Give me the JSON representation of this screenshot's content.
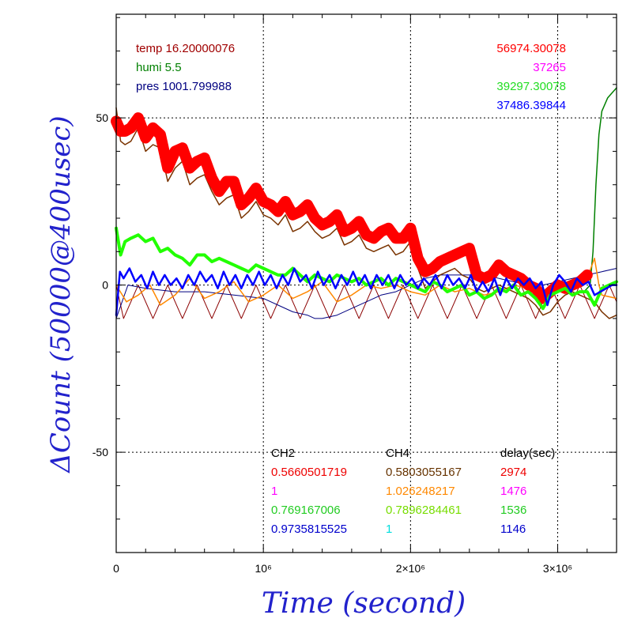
{
  "chart_data": {
    "type": "line",
    "xlabel": "Time (second)",
    "ylabel": "ΔCount (50000@400usec)",
    "xlim": [
      0,
      3400000
    ],
    "ylim": [
      -80,
      81
    ],
    "grid": true,
    "x_ticks": [
      {
        "value": 0,
        "label": "0"
      },
      {
        "value": 1000000,
        "label": "10⁶"
      },
      {
        "value": 2000000,
        "label": "2×10⁶"
      },
      {
        "value": 3000000,
        "label": "3×10⁶"
      }
    ],
    "y_ticks": [
      {
        "value": 50,
        "label": "50"
      },
      {
        "value": 0,
        "label": "0"
      },
      {
        "value": -50,
        "label": "-50"
      }
    ],
    "env_labels": [
      {
        "text": "temp 16.20000076",
        "color": "#a00000"
      },
      {
        "text": "humi 5.5",
        "color": "#008000"
      },
      {
        "text": "pres 1001.799988",
        "color": "#000080"
      }
    ],
    "ref_counts": [
      {
        "text": "56974.30078",
        "color": "#ff0000"
      },
      {
        "text": "37265",
        "color": "#ff00ff"
      },
      {
        "text": "39297.30078",
        "color": "#22dd22"
      },
      {
        "text": "37486.39844",
        "color": "#0000ff"
      }
    ],
    "ch_table": {
      "headers": [
        "CH2",
        "CH4",
        "delay(sec)"
      ],
      "ch2": [
        {
          "text": "0.5660501719",
          "color": "#ee0000"
        },
        {
          "text": "1",
          "color": "#ff00ff"
        },
        {
          "text": "0.769167006",
          "color": "#22cc22"
        },
        {
          "text": "0.9735815525",
          "color": "#0000cc"
        }
      ],
      "ch4": [
        {
          "text": "0.5803055167",
          "color": "#663300"
        },
        {
          "text": "1.026248217",
          "color": "#ff8800"
        },
        {
          "text": "0.7896284461",
          "color": "#77dd00"
        },
        {
          "text": "1",
          "color": "#00dddd"
        }
      ],
      "delay": [
        {
          "text": "2974",
          "color": "#ee0000"
        },
        {
          "text": "1476",
          "color": "#ff00ff"
        },
        {
          "text": "1536",
          "color": "#22cc22"
        },
        {
          "text": "1146",
          "color": "#0000cc"
        }
      ]
    },
    "series": [
      {
        "key": "temp",
        "color": "#8b0000",
        "width": 1,
        "x": [
          0,
          50000,
          150000,
          250000,
          350000,
          450000,
          550000,
          650000,
          750000,
          850000,
          950000,
          1050000,
          1150000,
          1250000,
          1350000,
          1450000,
          1550000,
          1650000,
          1750000,
          1850000,
          1950000,
          2050000,
          2150000,
          2250000,
          2350000,
          2450000,
          2550000,
          2650000,
          2750000,
          2850000,
          2950000,
          3050000,
          3150000,
          3250000,
          3350000,
          3400000
        ],
        "y": [
          0,
          -10,
          0,
          -10,
          0,
          -10,
          0,
          -10,
          0,
          -10,
          0,
          -10,
          0,
          -10,
          0,
          -10,
          0,
          -10,
          0,
          -10,
          0,
          -10,
          0,
          -10,
          0,
          -10,
          0,
          -10,
          0,
          -10,
          0,
          -10,
          0,
          -10,
          0,
          -5
        ]
      },
      {
        "key": "humi",
        "color": "#008000",
        "width": 1.5,
        "x": [
          3180000,
          3220000,
          3240000,
          3260000,
          3280000,
          3300000,
          3340000,
          3380000,
          3400000
        ],
        "y": [
          -2,
          0,
          10,
          30,
          45,
          52,
          56,
          58,
          59
        ]
      },
      {
        "key": "pres",
        "color": "#000080",
        "width": 1,
        "x": [
          0,
          80000,
          200000,
          400000,
          600000,
          800000,
          1000000,
          1100000,
          1200000,
          1300000,
          1350000,
          1400000,
          1500000,
          1600000,
          1700000,
          1800000,
          1900000,
          2000000,
          2100000,
          2200000,
          2300000,
          2400000,
          2500000,
          2600000,
          2700000,
          2800000,
          2900000,
          3000000,
          3100000,
          3200000,
          3300000,
          3400000
        ],
        "y": [
          -10,
          0,
          -1,
          -2,
          -2,
          -3,
          -4,
          -6,
          -8,
          -9,
          -10,
          -10,
          -9,
          -7,
          -5,
          -3,
          -2,
          0,
          2,
          3,
          3,
          3,
          3,
          2,
          1,
          0,
          0,
          1,
          2,
          3,
          4,
          5
        ]
      },
      {
        "key": "orange",
        "color": "#ff8800",
        "width": 1.5,
        "x": [
          0,
          70000,
          150000,
          230000,
          300000,
          400000,
          500000,
          600000,
          700000,
          800000,
          900000,
          1000000,
          1100000,
          1200000,
          1300000,
          1400000,
          1500000,
          1600000,
          1700000,
          1800000,
          1900000,
          2000000,
          2100000,
          2200000,
          2300000,
          2400000,
          2500000,
          2600000,
          2700000,
          2800000,
          2900000,
          3000000,
          3100000,
          3200000,
          3250000,
          3280000,
          3300000,
          3400000
        ],
        "y": [
          0,
          -5,
          -3,
          0,
          -6,
          -3,
          2,
          -4,
          -2,
          1,
          -5,
          -3,
          0,
          -4,
          -2,
          1,
          -5,
          -3,
          0,
          -1,
          0,
          -2,
          -3,
          0,
          -2,
          -1,
          -3,
          -2,
          0,
          -1,
          -3,
          -1,
          0,
          2,
          8,
          0,
          -3,
          -4
        ]
      },
      {
        "key": "dark_brown",
        "color": "#7a3300",
        "width": 1.5,
        "x": [
          0,
          30000,
          60000,
          100000,
          150000,
          200000,
          250000,
          300000,
          350000,
          400000,
          450000,
          500000,
          550000,
          600000,
          650000,
          700000,
          750000,
          800000,
          850000,
          900000,
          950000,
          1000000,
          1050000,
          1100000,
          1150000,
          1200000,
          1250000,
          1300000,
          1350000,
          1400000,
          1450000,
          1500000,
          1550000,
          1600000,
          1650000,
          1700000,
          1750000,
          1800000,
          1850000,
          1900000,
          1950000,
          2000000,
          2050000,
          2100000,
          2150000,
          2200000,
          2250000,
          2300000,
          2350000,
          2400000,
          2450000,
          2500000,
          2550000,
          2600000,
          2650000,
          2700000,
          2750000,
          2800000,
          2850000,
          2900000,
          2950000,
          3000000,
          3050000,
          3100000,
          3150000,
          3200000,
          3250000,
          3300000,
          3350000,
          3400000
        ],
        "y": [
          53,
          43,
          42,
          43,
          47,
          40,
          42,
          41,
          31,
          35,
          37,
          30,
          32,
          33,
          28,
          24,
          26,
          27,
          20,
          22,
          25,
          21,
          20,
          18,
          21,
          16,
          17,
          19,
          16,
          14,
          15,
          17,
          12,
          13,
          15,
          11,
          10,
          11,
          12,
          9,
          10,
          13,
          5,
          -1,
          1,
          3,
          4,
          5,
          3,
          2,
          -1,
          -2,
          -1,
          0,
          -1,
          -2,
          -3,
          -4,
          -6,
          -9,
          -8,
          -5,
          -3,
          -2,
          -3,
          -4,
          -5,
          -8,
          -10,
          -9
        ]
      },
      {
        "key": "red",
        "color": "#ff0000",
        "width": 14,
        "x": [
          0,
          30000,
          60000,
          100000,
          150000,
          200000,
          250000,
          300000,
          350000,
          400000,
          450000,
          500000,
          550000,
          600000,
          650000,
          700000,
          750000,
          800000,
          850000,
          900000,
          950000,
          1000000,
          1050000,
          1100000,
          1150000,
          1200000,
          1250000,
          1300000,
          1350000,
          1400000,
          1450000,
          1500000,
          1550000,
          1600000,
          1650000,
          1700000,
          1750000,
          1800000,
          1850000,
          1900000,
          1950000,
          2000000,
          2050000,
          2100000,
          2150000,
          2200000,
          2250000,
          2300000,
          2350000,
          2400000,
          2450000,
          2500000,
          2550000,
          2600000,
          2650000,
          2700000,
          2750000,
          2800000,
          2850000,
          2900000,
          2950000,
          3000000,
          3050000,
          3100000,
          3150000,
          3200000
        ],
        "y": [
          49,
          46,
          46,
          47,
          50,
          44,
          47,
          45,
          35,
          40,
          41,
          35,
          37,
          38,
          32,
          28,
          31,
          31,
          24,
          26,
          29,
          25,
          24,
          22,
          25,
          21,
          22,
          24,
          20,
          18,
          19,
          21,
          16,
          17,
          19,
          15,
          14,
          16,
          17,
          14,
          14,
          17,
          8,
          4,
          5,
          7,
          8,
          9,
          10,
          11,
          3,
          2,
          3,
          6,
          4,
          3,
          2,
          0,
          -1,
          -4,
          -2,
          0,
          -1,
          0,
          1,
          3
        ]
      },
      {
        "key": "green",
        "color": "#22ff00",
        "width": 4,
        "x": [
          0,
          30000,
          60000,
          100000,
          150000,
          200000,
          250000,
          300000,
          350000,
          400000,
          450000,
          500000,
          550000,
          600000,
          650000,
          700000,
          750000,
          800000,
          850000,
          900000,
          950000,
          1000000,
          1050000,
          1100000,
          1150000,
          1200000,
          1250000,
          1300000,
          1350000,
          1400000,
          1450000,
          1500000,
          1550000,
          1600000,
          1650000,
          1700000,
          1750000,
          1800000,
          1850000,
          1900000,
          1950000,
          2000000,
          2050000,
          2100000,
          2150000,
          2200000,
          2250000,
          2300000,
          2350000,
          2400000,
          2450000,
          2500000,
          2550000,
          2600000,
          2650000,
          2700000,
          2750000,
          2800000,
          2850000,
          2900000,
          2950000,
          3000000,
          3050000,
          3100000,
          3150000,
          3200000,
          3250000,
          3300000,
          3350000,
          3400000
        ],
        "y": [
          17,
          9,
          13,
          14,
          15,
          13,
          14,
          10,
          11,
          9,
          8,
          6,
          9,
          9,
          7,
          8,
          7,
          6,
          5,
          4,
          6,
          5,
          4,
          3,
          3,
          5,
          3,
          1,
          3,
          2,
          1,
          3,
          2,
          1,
          2,
          0,
          1,
          2,
          0,
          2,
          1,
          0,
          -1,
          -2,
          1,
          0,
          -2,
          -1,
          0,
          -3,
          -2,
          -4,
          -3,
          -1,
          -2,
          0,
          -3,
          -2,
          -4,
          -7,
          -3,
          -2,
          -1,
          -3,
          -2,
          -2,
          -6,
          -1,
          0,
          1
        ]
      },
      {
        "key": "blue",
        "color": "#0000ff",
        "width": 2.5,
        "x": [
          0,
          25000,
          50000,
          90000,
          130000,
          170000,
          210000,
          250000,
          290000,
          330000,
          370000,
          410000,
          450000,
          490000,
          530000,
          570000,
          610000,
          650000,
          690000,
          730000,
          770000,
          810000,
          850000,
          890000,
          930000,
          970000,
          1010000,
          1050000,
          1090000,
          1130000,
          1170000,
          1210000,
          1250000,
          1290000,
          1330000,
          1370000,
          1410000,
          1450000,
          1490000,
          1530000,
          1570000,
          1610000,
          1650000,
          1690000,
          1730000,
          1770000,
          1810000,
          1850000,
          1890000,
          1930000,
          1970000,
          2010000,
          2050000,
          2090000,
          2130000,
          2170000,
          2210000,
          2250000,
          2290000,
          2330000,
          2370000,
          2410000,
          2450000,
          2490000,
          2530000,
          2570000,
          2610000,
          2650000,
          2690000,
          2730000,
          2770000,
          2810000,
          2850000,
          2890000,
          2930000,
          2970000,
          3010000,
          3050000,
          3090000,
          3130000,
          3170000,
          3210000,
          3250000,
          3290000,
          3330000,
          3370000,
          3400000
        ],
        "y": [
          -9,
          4,
          2,
          5,
          1,
          3,
          -1,
          4,
          0,
          3,
          0,
          2,
          -1,
          3,
          0,
          4,
          1,
          3,
          -1,
          4,
          0,
          3,
          -1,
          3,
          0,
          4,
          0,
          3,
          -1,
          3,
          0,
          5,
          1,
          3,
          -1,
          4,
          0,
          3,
          -1,
          3,
          0,
          4,
          0,
          3,
          -1,
          3,
          0,
          3,
          -1,
          3,
          0,
          2,
          -1,
          2,
          0,
          3,
          -1,
          3,
          0,
          2,
          -1,
          3,
          -2,
          1,
          -2,
          2,
          -3,
          2,
          -1,
          2,
          0,
          2,
          -1,
          1,
          -6,
          0,
          3,
          1,
          -2,
          2,
          0,
          1,
          -3,
          -2,
          -1,
          0,
          0
        ]
      }
    ]
  }
}
